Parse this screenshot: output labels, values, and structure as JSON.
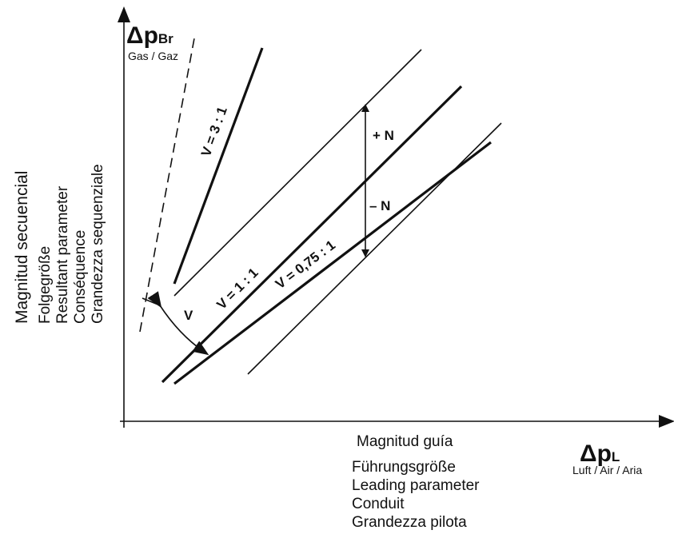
{
  "y_axis": {
    "symbol": "Δp",
    "subscript": "Br",
    "medium": "Gas / Gaz",
    "labels": [
      "Magnitud secuencial",
      "Folgegröße",
      "Resultant parameter",
      "Conséquence",
      "Grandezza sequenziale"
    ]
  },
  "x_axis": {
    "symbol": "Δp",
    "subscript": "L",
    "medium": "Luft / Air / Aria",
    "labels": [
      "Magnitud guía",
      "Führungsgröße",
      "Leading parameter",
      "Conduit",
      "Grandezza pilota"
    ]
  },
  "lines": {
    "ratio_3": "V = 3 : 1",
    "ratio_1": "V = 1 : 1",
    "ratio_075": "V = 0,75 : 1",
    "plus_n": "+ N",
    "minus_n": "– N",
    "angle": "V"
  }
}
